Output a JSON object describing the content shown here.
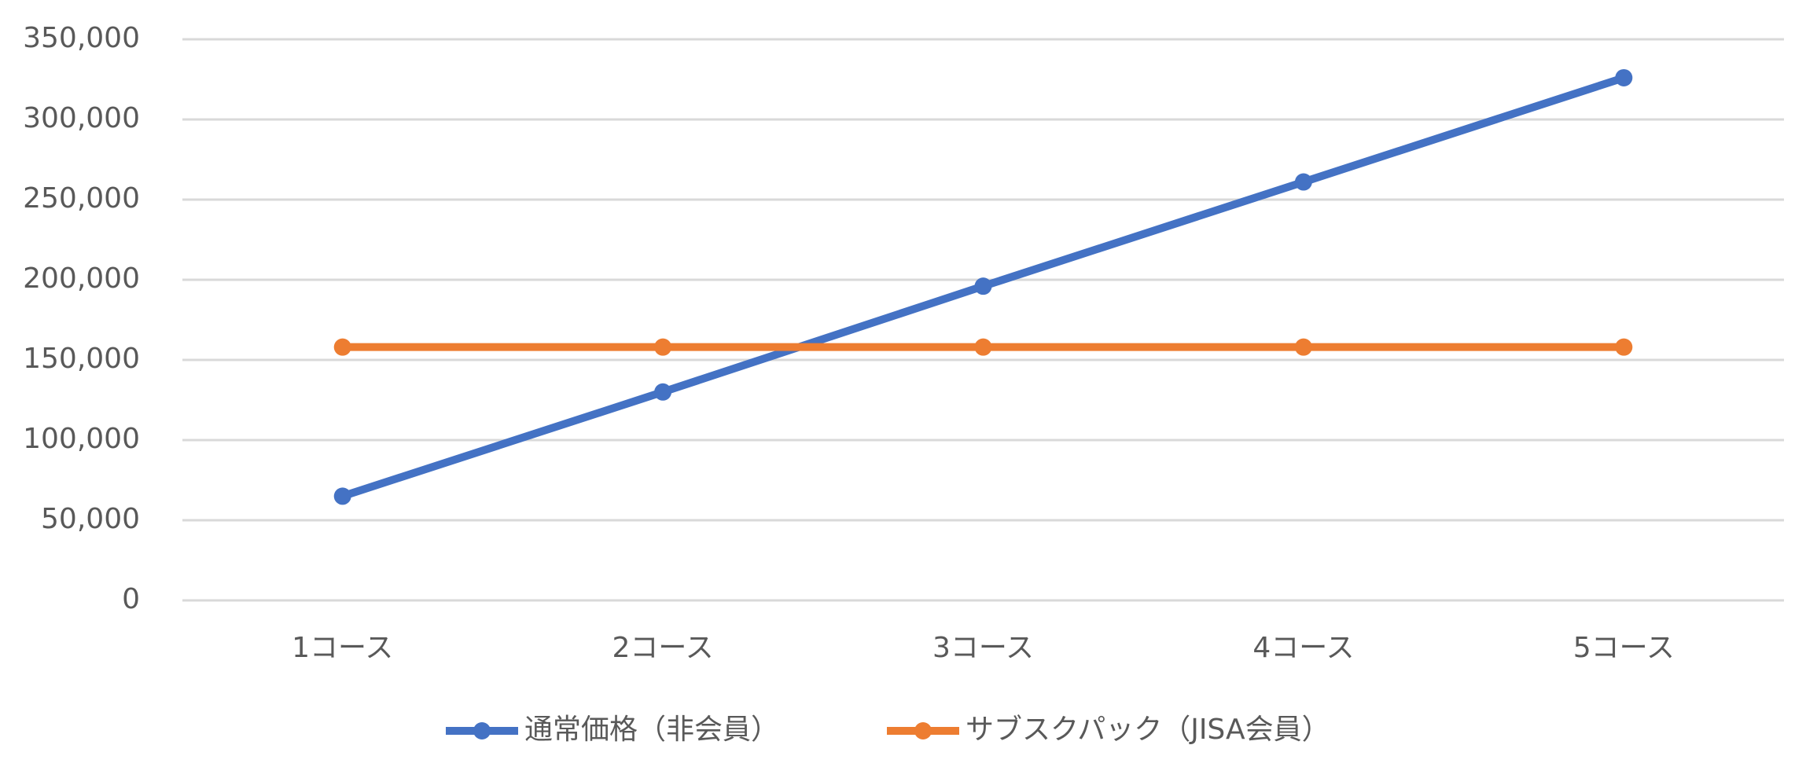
{
  "chart_data": {
    "type": "line",
    "categories": [
      "1コース",
      "2コース",
      "3コース",
      "4コース",
      "5コース"
    ],
    "series": [
      {
        "name": "通常価格（非会員）",
        "color": "#4472c4",
        "values": [
          65000,
          130000,
          196000,
          261000,
          326000
        ]
      },
      {
        "name": "サブスクパック（JISA会員）",
        "color": "#ed7d31",
        "values": [
          158000,
          158000,
          158000,
          158000,
          158000
        ]
      }
    ],
    "ylim": [
      0,
      350000
    ],
    "yticks": [
      0,
      {
        "value": 50000,
        "label": "50,000"
      },
      {
        "value": 100000,
        "label": "100,000"
      },
      {
        "value": 150000,
        "label": "150,000"
      },
      {
        "value": 200000,
        "label": "200,000"
      },
      {
        "value": 250000,
        "label": "250,000"
      },
      {
        "value": 300000,
        "label": "300,000"
      },
      {
        "value": 350000,
        "label": "350,000"
      }
    ],
    "grid": true,
    "legend": "bottom"
  }
}
